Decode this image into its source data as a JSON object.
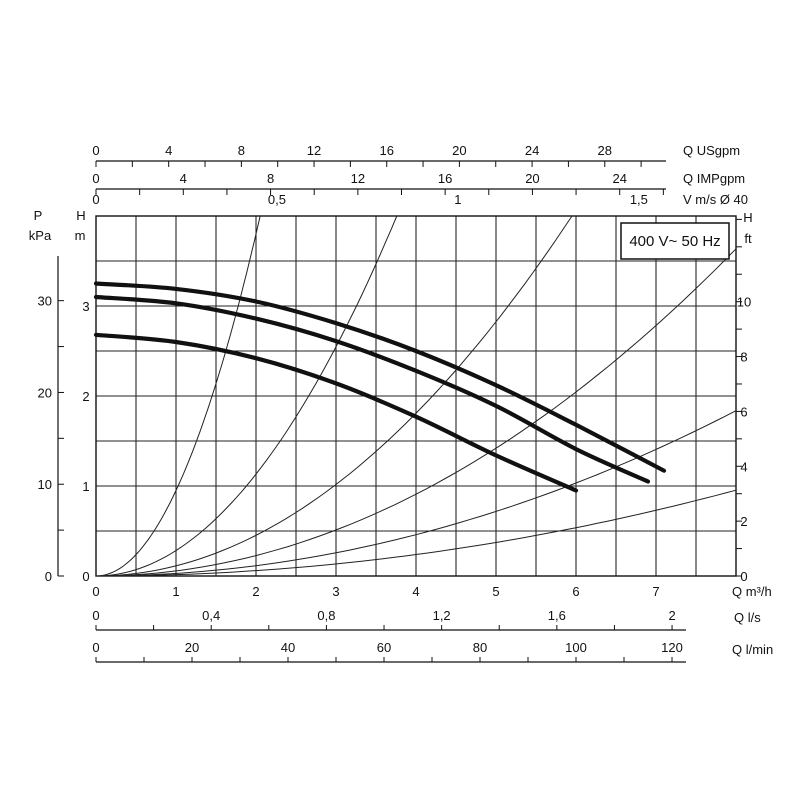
{
  "chart_data": {
    "type": "line",
    "title": "",
    "annotation": "400 V~ 50 Hz",
    "grid": true,
    "axes": {
      "bottom": [
        {
          "label": "Q m³/h",
          "ticks": [
            "0",
            "1",
            "2",
            "3",
            "4",
            "5",
            "6",
            "7"
          ],
          "range": [
            0,
            8
          ]
        },
        {
          "label": "Q l/s",
          "ticks": [
            "0",
            "0,4",
            "0,8",
            "1,2",
            "1,6",
            "2"
          ],
          "range": [
            0,
            2.222
          ]
        },
        {
          "label": "Q l/min",
          "ticks": [
            "0",
            "20",
            "40",
            "60",
            "80",
            "100",
            "120"
          ],
          "range": [
            0,
            133.33
          ]
        }
      ],
      "top": [
        {
          "label": "Q USgpm",
          "ticks": [
            "0",
            "4",
            "8",
            "12",
            "16",
            "20",
            "24",
            "28"
          ]
        },
        {
          "label": "Q IMPgpm",
          "ticks": [
            "0",
            "4",
            "8",
            "12",
            "16",
            "20",
            "24"
          ]
        },
        {
          "label": "V m/s Ø 40",
          "ticks": [
            "0",
            "0,5",
            "1",
            "1,5"
          ]
        }
      ],
      "left": [
        {
          "label_top": "P",
          "label_bottom": "kPa",
          "ticks": [
            "0",
            "10",
            "20",
            "30"
          ]
        },
        {
          "label_top": "H",
          "label_bottom": "m",
          "ticks": [
            "0",
            "1",
            "2",
            "3"
          ],
          "range": [
            0,
            4
          ]
        }
      ],
      "right": [
        {
          "label_top": "H",
          "label_bottom": "ft",
          "ticks": [
            "0",
            "2",
            "4",
            "6",
            "8",
            "10"
          ]
        }
      ]
    },
    "x_unit": "m³/h",
    "y_unit": "m",
    "series": [
      {
        "values": [
          [
            0,
            3.25
          ],
          [
            1,
            3.19
          ],
          [
            2,
            3.05
          ],
          [
            3,
            2.81
          ],
          [
            4,
            2.5
          ],
          [
            5,
            2.12
          ],
          [
            6,
            1.68
          ],
          [
            7.1,
            1.17
          ]
        ]
      },
      {
        "values": [
          [
            0,
            3.1
          ],
          [
            1,
            3.03
          ],
          [
            2,
            2.86
          ],
          [
            3,
            2.61
          ],
          [
            4,
            2.28
          ],
          [
            5,
            1.89
          ],
          [
            6,
            1.41
          ],
          [
            6.9,
            1.05
          ]
        ]
      },
      {
        "values": [
          [
            0,
            2.68
          ],
          [
            1,
            2.6
          ],
          [
            2,
            2.42
          ],
          [
            3,
            2.14
          ],
          [
            4,
            1.77
          ],
          [
            5,
            1.34
          ],
          [
            6,
            0.95
          ]
        ]
      }
    ],
    "system_curves": [
      {
        "k": 0.95
      },
      {
        "k": 0.283
      },
      {
        "k": 0.113
      },
      {
        "k": 0.0568
      },
      {
        "k": 0.0287
      },
      {
        "k": 0.0149
      }
    ]
  }
}
